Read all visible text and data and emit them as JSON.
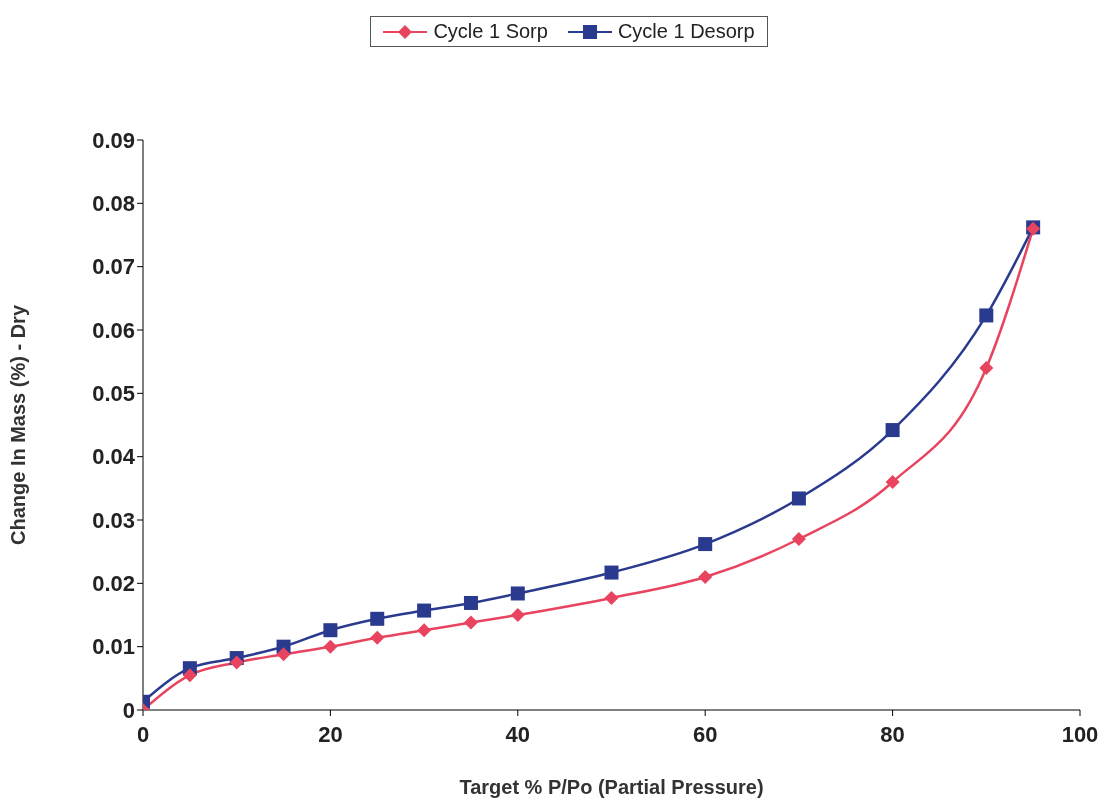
{
  "chart_data": {
    "type": "line",
    "xlabel": "Target % P/Po (Partial Pressure)",
    "ylabel": "Change In Mass (%) - Dry",
    "xlim": [
      0,
      100
    ],
    "xticks": [
      0,
      20,
      40,
      60,
      80,
      100
    ],
    "ylim": [
      0,
      0.09
    ],
    "yticks": [
      0,
      0.01,
      0.02,
      0.03,
      0.04,
      0.05,
      0.06,
      0.07,
      0.08,
      0.09
    ],
    "legend": "top",
    "x": [
      0,
      5,
      10,
      15,
      20,
      25,
      30,
      35,
      40,
      50,
      60,
      70,
      80,
      90,
      95
    ],
    "series": [
      {
        "name": "Cycle 1 Sorp",
        "color": "#e8435f",
        "marker": "diamond",
        "values": [
          0.0,
          0.0055,
          0.0075,
          0.0088,
          0.01,
          0.0114,
          0.0126,
          0.0138,
          0.015,
          0.0177,
          0.021,
          0.027,
          0.036,
          0.054,
          0.076
        ]
      },
      {
        "name": "Cycle 1 Desorp",
        "color": "#2a3a8f",
        "marker": "square",
        "values": [
          0.0013,
          0.0066,
          0.0082,
          0.01,
          0.0126,
          0.0144,
          0.0157,
          0.0169,
          0.0184,
          0.0217,
          0.0262,
          0.0334,
          0.0442,
          0.0623,
          0.0762
        ]
      }
    ]
  }
}
